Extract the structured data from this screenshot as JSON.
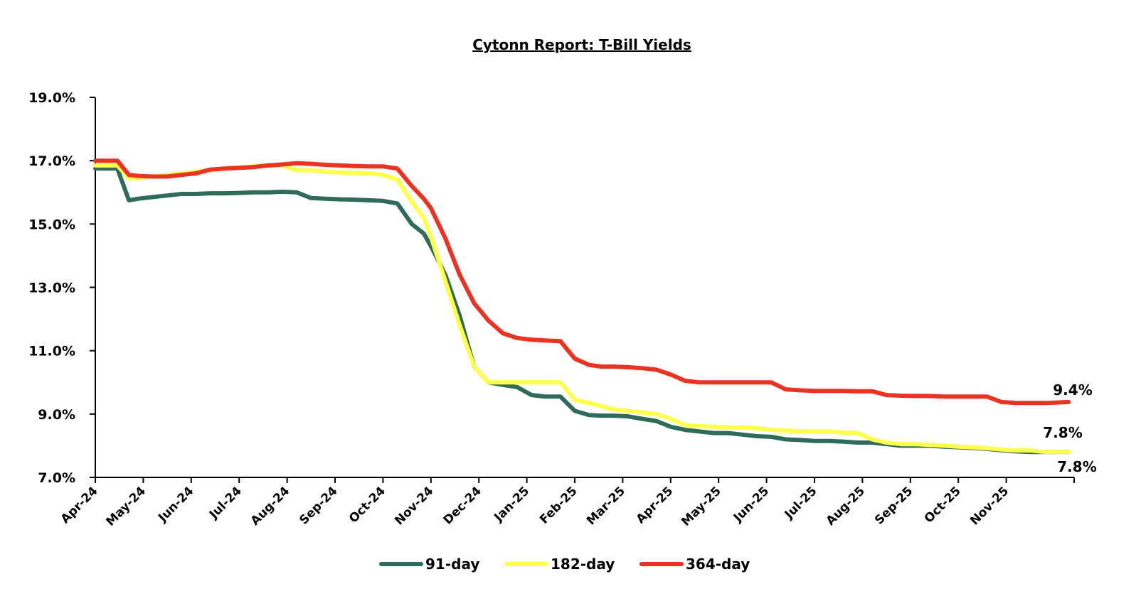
{
  "chart_data": {
    "type": "line",
    "title": "Cytonn Report: T-Bill Yields",
    "xlabel": "",
    "ylabel": "",
    "ylim": [
      7.0,
      19.0
    ],
    "yticks": [
      "7.0%",
      "9.0%",
      "11.0%",
      "13.0%",
      "15.0%",
      "17.0%",
      "19.0%"
    ],
    "ytick_values": [
      7,
      9,
      11,
      13,
      15,
      17,
      19
    ],
    "categories": [
      "Apr-24",
      "May-24",
      "Jun-24",
      "Jul-24",
      "Aug-24",
      "Sep-24",
      "Oct-24",
      "Nov-24",
      "Dec-24",
      "Jan-25",
      "Feb-25",
      "Mar-25",
      "Apr-25",
      "May-25",
      "Jun-25",
      "Jul-25",
      "Aug-25",
      "Sep-25",
      "Oct-25",
      "Nov-25"
    ],
    "x_range_months": [
      0,
      20.5
    ],
    "legend_position": "bottom",
    "grid": false,
    "series": [
      {
        "name": "91-day",
        "color": "#2e6b5a",
        "x": [
          0,
          0.46,
          0.7,
          0.9,
          1.2,
          1.5,
          1.8,
          2.1,
          2.4,
          2.7,
          3.0,
          3.3,
          3.6,
          3.9,
          4.2,
          4.5,
          4.8,
          5.1,
          5.4,
          5.7,
          6.0,
          6.3,
          6.6,
          6.85,
          7.0,
          7.3,
          7.6,
          7.9,
          8.2,
          8.5,
          8.8,
          9.1,
          9.4,
          9.7,
          10.0,
          10.3,
          10.55,
          10.8,
          11.1,
          11.4,
          11.7,
          12.0,
          12.3,
          12.6,
          12.9,
          13.2,
          13.5,
          13.8,
          14.1,
          14.4,
          14.7,
          15.0,
          15.3,
          15.6,
          15.9,
          16.2,
          16.5,
          16.8,
          17.1,
          17.4,
          17.7,
          18.0,
          18.3,
          18.6,
          18.9,
          19.2,
          19.5,
          19.85,
          20.3
        ],
        "values": [
          16.75,
          16.75,
          15.75,
          15.8,
          15.85,
          15.9,
          15.95,
          15.95,
          15.97,
          15.97,
          15.98,
          16.0,
          16.0,
          16.02,
          16.0,
          15.82,
          15.8,
          15.78,
          15.77,
          15.75,
          15.73,
          15.65,
          15.0,
          14.7,
          14.3,
          13.4,
          12.1,
          10.5,
          10.0,
          9.92,
          9.85,
          9.6,
          9.55,
          9.55,
          9.1,
          8.97,
          8.95,
          8.95,
          8.93,
          8.85,
          8.78,
          8.6,
          8.5,
          8.45,
          8.4,
          8.4,
          8.35,
          8.3,
          8.28,
          8.2,
          8.18,
          8.15,
          8.15,
          8.13,
          8.1,
          8.1,
          8.05,
          8.0,
          8.0,
          8.0,
          7.97,
          7.95,
          7.93,
          7.9,
          7.86,
          7.82,
          7.8,
          7.8,
          7.8
        ]
      },
      {
        "name": "182-day",
        "color": "#ffff4d",
        "x": [
          0,
          0.46,
          0.7,
          0.9,
          1.2,
          1.5,
          1.8,
          2.1,
          2.4,
          2.7,
          3.0,
          3.3,
          3.6,
          3.9,
          4.2,
          4.5,
          4.8,
          5.1,
          5.4,
          5.7,
          6.0,
          6.3,
          6.6,
          6.85,
          7.0,
          7.3,
          7.6,
          7.9,
          8.2,
          8.5,
          8.8,
          9.1,
          9.4,
          9.7,
          10.0,
          10.3,
          10.55,
          10.8,
          11.1,
          11.4,
          11.7,
          12.0,
          12.3,
          12.6,
          12.9,
          13.2,
          13.5,
          13.8,
          14.1,
          14.4,
          14.7,
          15.0,
          15.3,
          15.6,
          15.9,
          16.2,
          16.5,
          16.8,
          17.1,
          17.4,
          17.7,
          18.0,
          18.3,
          18.6,
          18.9,
          19.2,
          19.5,
          19.85,
          20.3
        ],
        "values": [
          16.85,
          16.85,
          16.45,
          16.45,
          16.5,
          16.55,
          16.6,
          16.65,
          16.7,
          16.75,
          16.8,
          16.82,
          16.85,
          16.85,
          16.7,
          16.7,
          16.65,
          16.63,
          16.62,
          16.6,
          16.55,
          16.4,
          15.7,
          15.2,
          14.6,
          13.2,
          11.8,
          10.5,
          10.0,
          10.0,
          10.0,
          10.0,
          10.0,
          10.0,
          9.45,
          9.35,
          9.25,
          9.15,
          9.1,
          9.05,
          9.0,
          8.85,
          8.65,
          8.62,
          8.6,
          8.58,
          8.58,
          8.55,
          8.5,
          8.48,
          8.45,
          8.45,
          8.45,
          8.42,
          8.4,
          8.2,
          8.1,
          8.05,
          8.05,
          8.03,
          8.0,
          7.97,
          7.95,
          7.92,
          7.88,
          7.85,
          7.85,
          7.8,
          7.8
        ]
      },
      {
        "name": "364-day",
        "color": "#ea3323",
        "x": [
          0,
          0.46,
          0.7,
          0.9,
          1.2,
          1.5,
          1.8,
          2.1,
          2.4,
          2.7,
          3.0,
          3.3,
          3.6,
          3.9,
          4.2,
          4.5,
          4.8,
          5.1,
          5.4,
          5.7,
          6.0,
          6.3,
          6.6,
          6.85,
          7.0,
          7.3,
          7.6,
          7.9,
          8.2,
          8.5,
          8.8,
          9.1,
          9.4,
          9.7,
          10.0,
          10.3,
          10.55,
          10.8,
          11.1,
          11.4,
          11.7,
          12.0,
          12.3,
          12.6,
          12.9,
          13.2,
          13.5,
          13.8,
          14.1,
          14.4,
          14.7,
          15.0,
          15.3,
          15.6,
          15.9,
          16.2,
          16.5,
          16.8,
          17.1,
          17.4,
          17.7,
          18.0,
          18.3,
          18.6,
          18.9,
          19.2,
          19.5,
          19.85,
          20.3
        ],
        "values": [
          17.0,
          17.0,
          16.55,
          16.52,
          16.5,
          16.5,
          16.55,
          16.6,
          16.72,
          16.75,
          16.77,
          16.8,
          16.85,
          16.88,
          16.92,
          16.9,
          16.87,
          16.85,
          16.83,
          16.82,
          16.82,
          16.75,
          16.2,
          15.8,
          15.5,
          14.55,
          13.4,
          12.5,
          11.95,
          11.55,
          11.4,
          11.35,
          11.32,
          11.3,
          10.75,
          10.55,
          10.5,
          10.5,
          10.48,
          10.45,
          10.4,
          10.25,
          10.05,
          10.0,
          10.0,
          10.0,
          10.0,
          10.0,
          10.0,
          9.78,
          9.75,
          9.73,
          9.73,
          9.73,
          9.72,
          9.72,
          9.6,
          9.58,
          9.57,
          9.57,
          9.55,
          9.55,
          9.55,
          9.55,
          9.38,
          9.35,
          9.35,
          9.35,
          9.38
        ]
      }
    ],
    "data_labels": [
      {
        "series": "364-day",
        "text": "9.4%"
      },
      {
        "series": "182-day",
        "text": "7.8%"
      },
      {
        "series": "91-day",
        "text": "7.8%"
      }
    ]
  }
}
